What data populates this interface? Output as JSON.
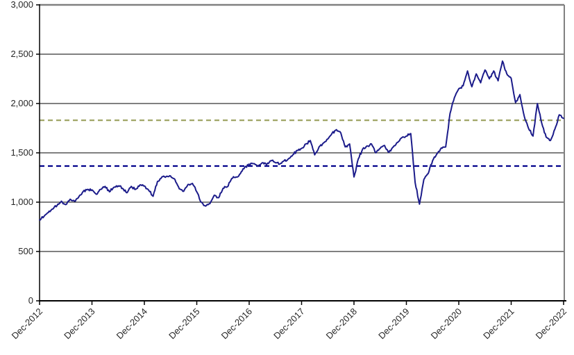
{
  "chart_data": {
    "type": "line",
    "title": "",
    "xlabel": "",
    "ylabel": "",
    "ylim": [
      0,
      3000
    ],
    "y_ticks": [
      0,
      500,
      1000,
      1500,
      2000,
      2500,
      3000
    ],
    "y_tick_labels": [
      "0",
      "500",
      "1,000",
      "1,500",
      "2,000",
      "2,500",
      "3,000"
    ],
    "x_tick_labels": [
      "Dec-2012",
      "Dec-2013",
      "Dec-2014",
      "Dec-2015",
      "Dec-2016",
      "Dec-2017",
      "Dec-2018",
      "Dec-2019",
      "Dec-2020",
      "Dec-2021",
      "Dec-2022"
    ],
    "grid": "horizontal",
    "legend": "none",
    "series": [
      {
        "name": "index-level",
        "frequency": "monthly",
        "start": "Dec-2012",
        "end": "Dec-2022",
        "color": "#1b1b8a",
        "monthly_values": [
          820,
          855,
          895,
          930,
          965,
          1010,
          975,
          1030,
          1010,
          1055,
          1110,
          1130,
          1125,
          1080,
          1130,
          1160,
          1105,
          1150,
          1165,
          1140,
          1095,
          1160,
          1130,
          1175,
          1165,
          1120,
          1060,
          1210,
          1255,
          1260,
          1265,
          1230,
          1135,
          1110,
          1180,
          1190,
          1105,
          1000,
          960,
          985,
          1070,
          1045,
          1140,
          1155,
          1240,
          1255,
          1290,
          1355,
          1385,
          1390,
          1365,
          1400,
          1380,
          1420,
          1400,
          1385,
          1420,
          1440,
          1480,
          1525,
          1545,
          1590,
          1625,
          1480,
          1560,
          1600,
          1640,
          1700,
          1735,
          1700,
          1560,
          1590,
          1255,
          1440,
          1540,
          1570,
          1590,
          1500,
          1545,
          1575,
          1505,
          1560,
          1605,
          1655,
          1670,
          1695,
          1200,
          980,
          1230,
          1290,
          1420,
          1490,
          1550,
          1560,
          1900,
          2060,
          2150,
          2180,
          2330,
          2170,
          2300,
          2210,
          2340,
          2250,
          2330,
          2230,
          2430,
          2300,
          2255,
          2010,
          2090,
          1870,
          1745,
          1670,
          2000,
          1800,
          1660,
          1625,
          1740,
          1885,
          1850
        ]
      }
    ],
    "reference_lines": [
      {
        "name": "upper-reference-line",
        "value": 1830,
        "color": "#a0a566",
        "style": "dashed"
      },
      {
        "name": "lower-reference-line",
        "value": 1366,
        "color": "#00008b",
        "style": "dashed"
      }
    ],
    "style": {
      "line_width": 2,
      "grid_color": "#000000",
      "plot_border_color": "#808080",
      "axis_color": "#000000",
      "text_color": "#262626",
      "background": "#ffffff",
      "noise_seed": 12,
      "noise_amplitude": 14,
      "sub_steps_per_month": 5
    }
  }
}
